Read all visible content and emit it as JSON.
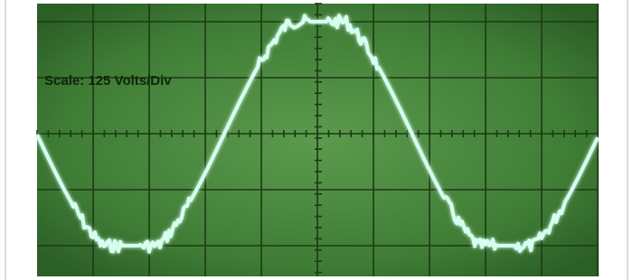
{
  "annotation": "Scale: 125 Volts/Div"
}
